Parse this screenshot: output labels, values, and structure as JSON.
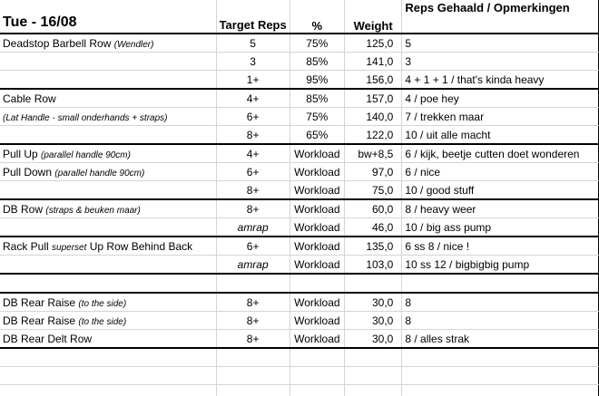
{
  "header": {
    "title": "Tue - 16/08",
    "target_reps": "Target Reps",
    "pct": "%",
    "weight": "Weight",
    "notes": "Reps Gehaald / Opmerkingen"
  },
  "rows": [
    {
      "ex": "Deadstop Barbell Row",
      "note": "(Wendler)",
      "reps": "5",
      "pct": "75%",
      "weight": "125,0",
      "result": "5"
    },
    {
      "ex": "",
      "note": "",
      "reps": "3",
      "pct": "85%",
      "weight": "141,0",
      "result": "3"
    },
    {
      "ex": "",
      "note": "",
      "reps": "1+",
      "pct": "95%",
      "weight": "156,0",
      "result": "4 + 1 + 1 / that's kinda heavy"
    },
    {
      "ex": "Cable Row",
      "note": "",
      "reps": "4+",
      "pct": "85%",
      "weight": "157,0",
      "result": "4 / poe hey"
    },
    {
      "ex": "",
      "note": "(Lat Handle - small onderhands + straps)",
      "reps": "6+",
      "pct": "75%",
      "weight": "140,0",
      "result": "7 / trekken maar"
    },
    {
      "ex": "",
      "note": "",
      "reps": "8+",
      "pct": "65%",
      "weight": "122,0",
      "result": "10 / uit alle macht"
    },
    {
      "ex": "Pull Up",
      "note": "(parallel handle 90cm)",
      "reps": "4+",
      "pct": "Workload",
      "weight": "bw+8,5",
      "result": "6 / kijk, beetje cutten doet wonderen"
    },
    {
      "ex": "Pull Down",
      "note": "(parallel handle 90cm)",
      "reps": "6+",
      "pct": "Workload",
      "weight": "97,0",
      "result": "6 / nice"
    },
    {
      "ex": "",
      "note": "",
      "reps": "8+",
      "pct": "Workload",
      "weight": "75,0",
      "result": "10 / good stuff"
    },
    {
      "ex": "DB Row",
      "note": "(straps & beuken maar)",
      "reps": "8+",
      "pct": "Workload",
      "weight": "60,0",
      "result": "8 / heavy weer"
    },
    {
      "ex": "",
      "note": "",
      "reps": "amrap",
      "pct": "Workload",
      "weight": "46,0",
      "result": "10 / big ass pump"
    },
    {
      "ex": "Rack Pull",
      "note": "superset",
      "ex2": "Up Row Behind Back",
      "reps": "6+",
      "pct": "Workload",
      "weight": "135,0",
      "result": "6 ss 8 / nice !"
    },
    {
      "ex": "",
      "note": "",
      "reps": "amrap",
      "pct": "Workload",
      "weight": "103,0",
      "result": "10 ss 12 / bigbigbig pump"
    },
    {
      "ex": "",
      "note": "",
      "reps": "",
      "pct": "",
      "weight": "",
      "result": ""
    },
    {
      "ex": "DB Rear Raise",
      "note": "(to the side)",
      "reps": "8+",
      "pct": "Workload",
      "weight": "30,0",
      "result": "8"
    },
    {
      "ex": "DB Rear Raise",
      "note": "(to the side)",
      "reps": "8+",
      "pct": "Workload",
      "weight": "30,0",
      "result": "8"
    },
    {
      "ex": "DB Rear Delt Row",
      "note": "",
      "reps": "8+",
      "pct": "Workload",
      "weight": "30,0",
      "result": "8 / alles strak"
    },
    {
      "ex": "",
      "note": "",
      "reps": "",
      "pct": "",
      "weight": "",
      "result": ""
    },
    {
      "ex": "",
      "note": "",
      "reps": "",
      "pct": "",
      "weight": "",
      "result": ""
    },
    {
      "ex": "",
      "note": "",
      "reps": "",
      "pct": "",
      "weight": "",
      "result": ""
    }
  ]
}
